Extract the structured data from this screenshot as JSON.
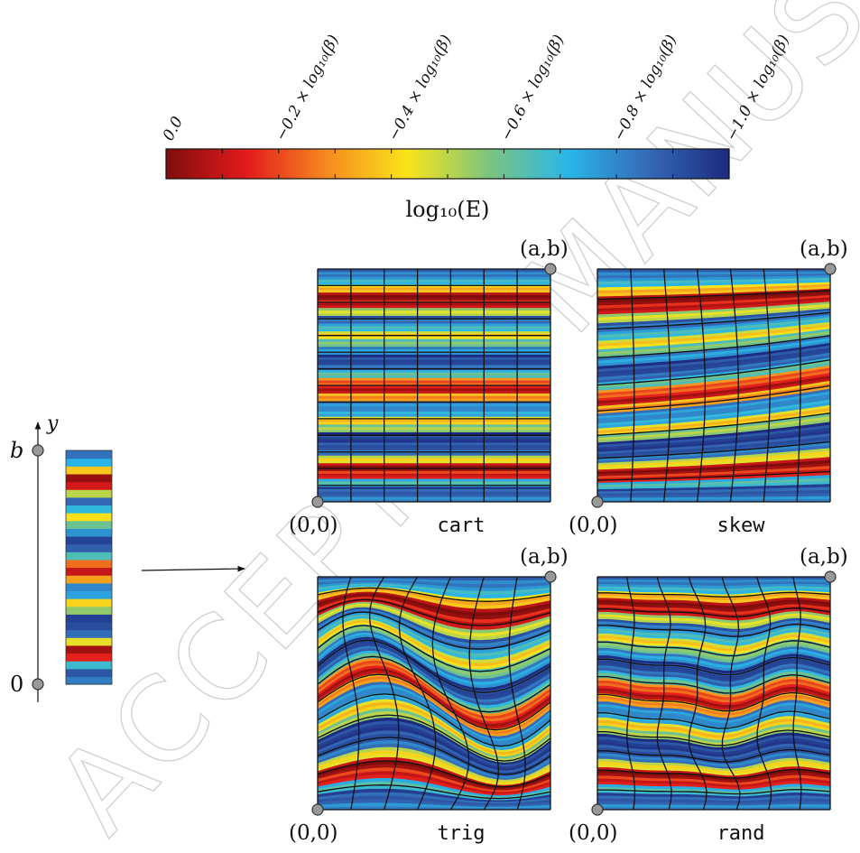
{
  "watermark": "ACCEPTED MANUSCRIPT",
  "colorbar": {
    "label": "log₁₀(E)",
    "ticks": [
      "0.0",
      "−0.2 × log₁₀(β)",
      "−0.4 × log₁₀(β)",
      "−0.6 × log₁₀(β)",
      "−0.8 × log₁₀(β)",
      "−1.0 × log₁₀(β)"
    ],
    "colors": [
      "#7f0d0d",
      "#e31a1c",
      "#f68a1f",
      "#f9e51a",
      "#7dc57c",
      "#29b6e8",
      "#3469b6",
      "#1c2a7e"
    ]
  },
  "domain_axis": {
    "axis_label": "y",
    "top_label": "b",
    "bottom_label": "0"
  },
  "corner_labels": {
    "origin": "(0,0)",
    "far": "(a,b)"
  },
  "meshes": [
    {
      "name": "cart"
    },
    {
      "name": "skew"
    },
    {
      "name": "trig"
    },
    {
      "name": "rand"
    }
  ],
  "layers": [
    0.18,
    0.1,
    0.32,
    0.85,
    0.95,
    0.55,
    0.15,
    0.08,
    0.05,
    0.45,
    0.6,
    0.25,
    0.2,
    0.68,
    0.9,
    0.75,
    0.35,
    0.12,
    0.06,
    0.22,
    0.4,
    0.58,
    0.3,
    0.14,
    0.5,
    0.88,
    0.97,
    0.62,
    0.28,
    0.16
  ]
}
